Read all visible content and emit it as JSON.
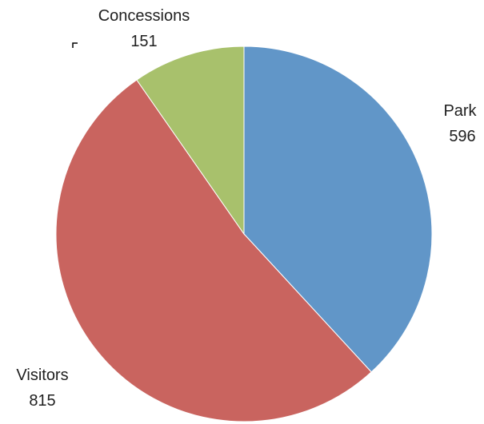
{
  "chart_data": {
    "type": "pie",
    "title": "",
    "slices": [
      {
        "name": "Park",
        "value": 596,
        "color": "#6196c8"
      },
      {
        "name": "Visitors",
        "value": 815,
        "color": "#c9645f"
      },
      {
        "name": "Concessions",
        "value": 151,
        "color": "#a8c16c"
      }
    ],
    "start_angle_deg": 0,
    "direction": "clockwise",
    "slice_border_color": "#ffffff",
    "legend": "none",
    "data_labels": "category and value"
  }
}
